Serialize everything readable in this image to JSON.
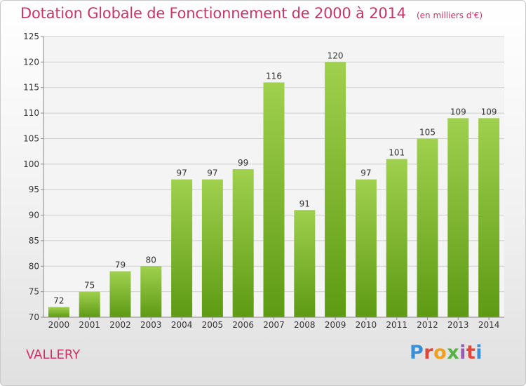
{
  "chart_data": {
    "type": "bar",
    "title": "Dotation Globale de Fonctionnement de 2000 à 2014",
    "subtitle": "(en milliers d'€)",
    "categories": [
      "2000",
      "2001",
      "2002",
      "2003",
      "2004",
      "2005",
      "2006",
      "2007",
      "2008",
      "2009",
      "2010",
      "2011",
      "2012",
      "2013",
      "2014"
    ],
    "values": [
      72,
      75,
      79,
      80,
      97,
      97,
      99,
      116,
      91,
      120,
      97,
      101,
      105,
      109,
      109
    ],
    "ylim": [
      70,
      125
    ],
    "yticks": [
      70,
      75,
      80,
      85,
      90,
      95,
      100,
      105,
      110,
      115,
      120,
      125
    ],
    "grid": true,
    "legend": "none",
    "bar_color": "#7ab92e"
  },
  "footer": {
    "commune": "VALLERY",
    "logo_text": "Proxiti"
  }
}
